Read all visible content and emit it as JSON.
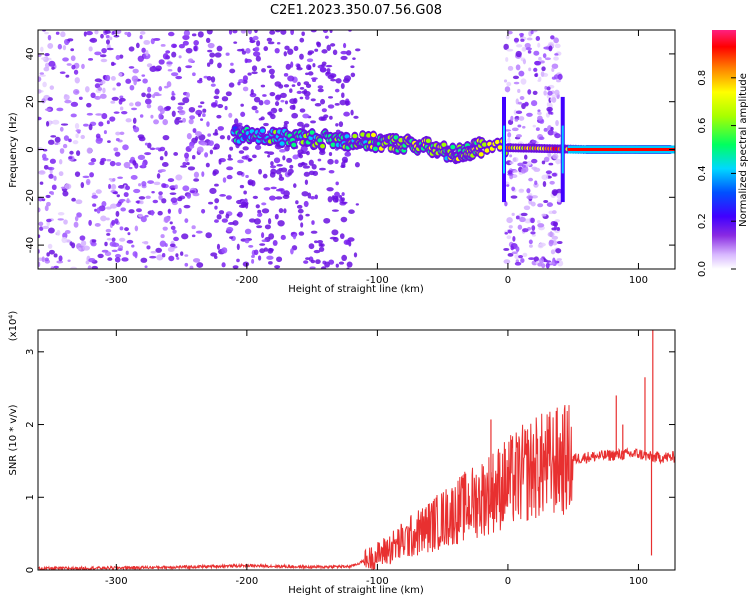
{
  "title": "C2E1.2023.350.07.56.G08",
  "colors": {
    "snr_line": "#e83030",
    "spectro_background": "#ffffff",
    "colorscale": [
      "#e8d6ff",
      "#c080ff",
      "#7a20ff",
      "#2030ff",
      "#00c8ff",
      "#00ff80",
      "#a0ff00",
      "#ffff00",
      "#ff8000",
      "#ff0000",
      "#ff0080"
    ]
  },
  "chart_data": [
    {
      "type": "heatmap",
      "name_hint": "spectrogram",
      "xlabel": "Height of straight line (km)",
      "ylabel": "Frequency (Hz)",
      "xlim": [
        -360,
        128
      ],
      "ylim": [
        -50,
        50
      ],
      "xticks": [
        -300,
        -200,
        -100,
        0,
        100
      ],
      "yticks": [
        -40,
        -20,
        0,
        20,
        40
      ],
      "colorbar": {
        "label": "Normalized spectral amplitude",
        "range": [
          0.0,
          1.0
        ],
        "ticks": [
          0.0,
          0.2,
          0.4,
          0.6,
          0.8
        ]
      },
      "features": {
        "noise_region_x": [
          -360,
          -125
        ],
        "signal_band": [
          {
            "x": -210,
            "y": 6,
            "amp": 0.35
          },
          {
            "x": -170,
            "y": 5,
            "amp": 0.4
          },
          {
            "x": -130,
            "y": 4,
            "amp": 0.45
          },
          {
            "x": -100,
            "y": 3,
            "amp": 0.5
          },
          {
            "x": -70,
            "y": 2,
            "amp": 0.55
          },
          {
            "x": -40,
            "y": -2,
            "amp": 0.5
          },
          {
            "x": -20,
            "y": 1,
            "amp": 0.6
          },
          {
            "x": 60,
            "y": 0,
            "amp": 0.9
          },
          {
            "x": 100,
            "y": 0,
            "amp": 0.9
          },
          {
            "x": 125,
            "y": 0,
            "amp": 0.85
          }
        ],
        "vertical_spike_x": [
          -3,
          42
        ],
        "noise_strip_x": [
          -2,
          40
        ]
      }
    },
    {
      "type": "line",
      "name_hint": "snr",
      "xlabel": "Height of straight line (km)",
      "ylabel": "SNR (10 * v/v)",
      "y_multiplier_label": "(x10⁴)",
      "xlim": [
        -360,
        128
      ],
      "ylim": [
        0,
        3.3
      ],
      "xticks": [
        -300,
        -200,
        -100,
        0,
        100
      ],
      "yticks": [
        0,
        1,
        2,
        3
      ],
      "x": [
        -360,
        -300,
        -250,
        -200,
        -150,
        -120,
        -100,
        -80,
        -60,
        -40,
        -20,
        0,
        20,
        40,
        60,
        80,
        100,
        110,
        128
      ],
      "y": [
        0.02,
        0.03,
        0.04,
        0.06,
        0.04,
        0.05,
        0.2,
        0.4,
        0.6,
        0.8,
        1.0,
        1.2,
        1.4,
        1.5,
        1.55,
        1.58,
        1.6,
        1.55,
        1.55
      ],
      "spikes": [
        {
          "x": -13,
          "y": 2.07
        },
        {
          "x": 83,
          "y": 2.4
        },
        {
          "x": 88,
          "y": 2.0
        },
        {
          "x": 105,
          "y": 2.65
        },
        {
          "x": 111,
          "y": 3.3
        },
        {
          "x": 110,
          "y": 0.2
        }
      ]
    }
  ]
}
